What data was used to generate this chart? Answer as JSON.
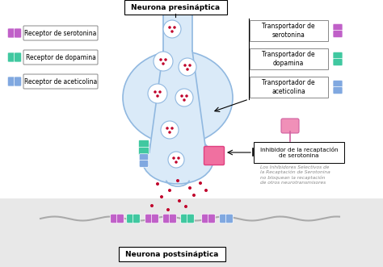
{
  "title_presynaptic": "Neurona presináptica",
  "title_postsynaptic": "Neurona postsináptica",
  "legend_items": [
    {
      "label": "Receptor de serotonina",
      "color": "#c060c8"
    },
    {
      "label": "Receptor de dopamina",
      "color": "#40c8a0"
    },
    {
      "label": "Receptor de aceticolina",
      "color": "#80a8e0"
    }
  ],
  "right_labels": [
    {
      "label": "Transportador de\nserotonina",
      "color": "#c060c8"
    },
    {
      "label": "Transportador de\ndopamina",
      "color": "#40c8a0"
    },
    {
      "label": "Transportador de\naceticolina",
      "color": "#80a8e0"
    }
  ],
  "inhibitor_label": "Inhibidor de la recaptación\nde serotonina",
  "inhibitor_note": "Los Inhibidores Selectivos de\nla Recaptación de Serotonina\nno bloquean la recaptación\nde otros neurotransmisores",
  "neuron_body_color": "#daeaf8",
  "neuron_border_color": "#90b8e0",
  "serotonin_color": "#c0002a",
  "inhibitor_block_color": "#f070a0",
  "inhibitor_icon_color": "#f090b8",
  "bg_gray": "#e8e8e8",
  "bg_white": "#ffffff"
}
